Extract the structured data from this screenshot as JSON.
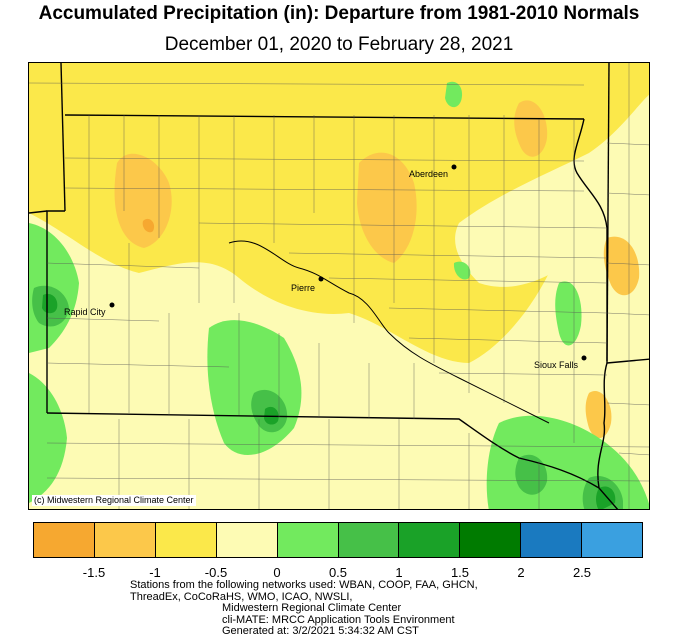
{
  "title": "Accumulated Precipitation (in): Departure from 1981-2010 Normals",
  "subtitle": "December 01, 2020 to February 28, 2021",
  "map": {
    "copyright": "(c) Midwestern Regional Climate Center",
    "cities": [
      {
        "name": "Aberdeen"
      },
      {
        "name": "Pierre"
      },
      {
        "name": "Rapid City"
      },
      {
        "name": "Sioux Falls"
      }
    ]
  },
  "legend": {
    "colors": [
      "#f6a830",
      "#fcc84a",
      "#fbe84a",
      "#fdfbb4",
      "#72ea5e",
      "#46c048",
      "#1aa228",
      "#007b00",
      "#1a7ac0",
      "#3aa0e0"
    ],
    "tick_labels": [
      "-1.5",
      "-1",
      "-0.5",
      "0",
      "0.5",
      "1",
      "1.5",
      "2",
      "2.5"
    ]
  },
  "footer": {
    "line1": "Stations from the following networks used: WBAN, COOP, FAA, GHCN,",
    "line2": "ThreadEx, CoCoRaHS, WMO, ICAO, NWSLI,",
    "line3": "Midwestern Regional Climate Center",
    "line4": "cli-MATE: MRCC Application Tools Environment",
    "line5": "Generated at: 3/2/2021 5:34:32 AM CST"
  }
}
